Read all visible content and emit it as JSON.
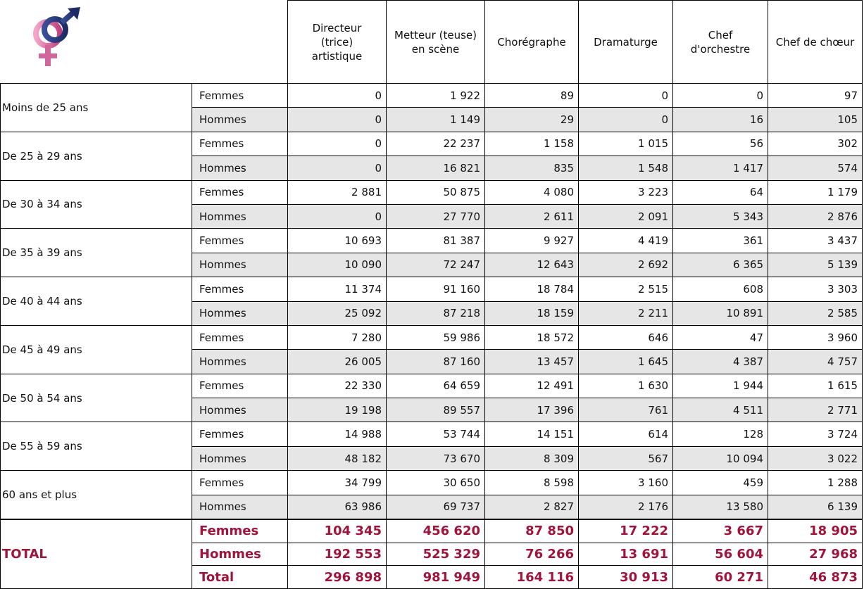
{
  "table": {
    "header": [
      "Directeur (trice) artistique",
      "Metteur (teuse) en scène",
      "Chorégraphe",
      "Dramaturge",
      "Chef d'orchestre",
      "Chef de chœur"
    ],
    "groups": [
      {
        "label": "Moins de 25 ans",
        "rows": [
          {
            "sex": "Femmes",
            "values": [
              "0",
              "1 922",
              "89",
              "0",
              "0",
              "97"
            ]
          },
          {
            "sex": "Hommes",
            "values": [
              "0",
              "1 149",
              "29",
              "0",
              "16",
              "105"
            ]
          }
        ]
      },
      {
        "label": "De 25 à 29 ans",
        "rows": [
          {
            "sex": "Femmes",
            "values": [
              "0",
              "22 237",
              "1 158",
              "1 015",
              "56",
              "302"
            ]
          },
          {
            "sex": "Hommes",
            "values": [
              "0",
              "16 821",
              "835",
              "1 548",
              "1 417",
              "574"
            ]
          }
        ]
      },
      {
        "label": "De 30 à 34 ans",
        "rows": [
          {
            "sex": "Femmes",
            "values": [
              "2 881",
              "50 875",
              "4 080",
              "3 223",
              "64",
              "1 179"
            ]
          },
          {
            "sex": "Hommes",
            "values": [
              "0",
              "27 770",
              "2 611",
              "2 091",
              "5 343",
              "2 876"
            ]
          }
        ]
      },
      {
        "label": "De 35 à 39 ans",
        "rows": [
          {
            "sex": "Femmes",
            "values": [
              "10 693",
              "81 387",
              "9 927",
              "4 419",
              "361",
              "3 437"
            ]
          },
          {
            "sex": "Hommes",
            "values": [
              "10 090",
              "72 247",
              "12 643",
              "2 692",
              "6 365",
              "5 139"
            ]
          }
        ]
      },
      {
        "label": "De 40 à 44 ans",
        "rows": [
          {
            "sex": "Femmes",
            "values": [
              "11 374",
              "91 160",
              "18 784",
              "2 515",
              "608",
              "3 303"
            ]
          },
          {
            "sex": "Hommes",
            "values": [
              "25 092",
              "87 218",
              "18 159",
              "2 211",
              "10 891",
              "2 585"
            ]
          }
        ]
      },
      {
        "label": "De 45 à 49 ans",
        "rows": [
          {
            "sex": "Femmes",
            "values": [
              "7 280",
              "59 986",
              "18 572",
              "646",
              "47",
              "3 960"
            ]
          },
          {
            "sex": "Hommes",
            "values": [
              "26 005",
              "87 160",
              "13 457",
              "1 645",
              "4 387",
              "4 757"
            ]
          }
        ]
      },
      {
        "label": "De 50 à 54 ans",
        "rows": [
          {
            "sex": "Femmes",
            "values": [
              "22 330",
              "64 659",
              "12 491",
              "1 630",
              "1 944",
              "1 615"
            ]
          },
          {
            "sex": "Hommes",
            "values": [
              "19 198",
              "89 557",
              "17 396",
              "761",
              "4 511",
              "2 771"
            ]
          }
        ]
      },
      {
        "label": "De 55 à 59 ans",
        "rows": [
          {
            "sex": "Femmes",
            "values": [
              "14 988",
              "53 744",
              "14 151",
              "614",
              "128",
              "3 724"
            ]
          },
          {
            "sex": "Hommes",
            "values": [
              "48 182",
              "73 670",
              "8 309",
              "567",
              "10 094",
              "3 022"
            ]
          }
        ]
      },
      {
        "label": "60 ans et plus",
        "rows": [
          {
            "sex": "Femmes",
            "values": [
              "34 799",
              "30 650",
              "8 598",
              "3 160",
              "459",
              "1 288"
            ]
          },
          {
            "sex": "Hommes",
            "values": [
              "63 986",
              "69 737",
              "2 827",
              "2 176",
              "13 580",
              "6 139"
            ]
          }
        ]
      }
    ],
    "total": {
      "label": "TOTAL",
      "rows": [
        {
          "sex": "Femmes",
          "values": [
            "104 345",
            "456 620",
            "87 850",
            "17 222",
            "3 667",
            "18 905"
          ]
        },
        {
          "sex": "Hommes",
          "values": [
            "192 553",
            "525 329",
            "76 266",
            "13 691",
            "56 604",
            "27 968"
          ]
        },
        {
          "sex": "Total",
          "values": [
            "296 898",
            "981 949",
            "164 116",
            "30 913",
            "60 271",
            "46 873"
          ]
        }
      ]
    }
  }
}
